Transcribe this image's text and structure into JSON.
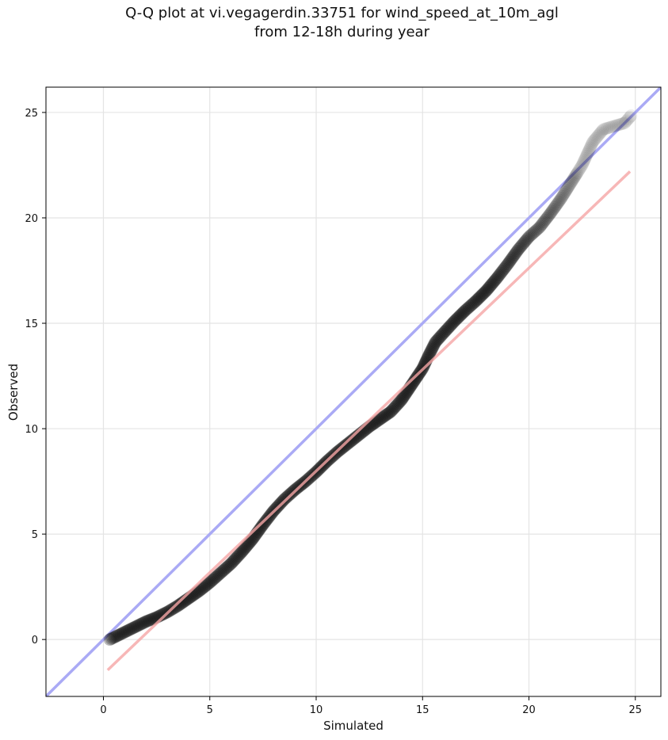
{
  "chart_data": {
    "type": "scatter",
    "title_line1": "Q-Q plot at vi.vegagerdin.33751 for wind_speed_at_10m_agl",
    "title_line2": "from 12-18h during year",
    "xlabel": "Simulated",
    "ylabel": "Observed",
    "xlim": [
      -2.7,
      26.2
    ],
    "ylim": [
      -2.7,
      26.2
    ],
    "xticks": [
      0,
      5,
      10,
      15,
      20,
      25
    ],
    "yticks": [
      0,
      5,
      10,
      15,
      20,
      25
    ],
    "grid": true,
    "reference_line": {
      "name": "1:1",
      "color": "#aaaaf5",
      "from": [
        -2.7,
        -2.7
      ],
      "to": [
        26.2,
        26.2
      ]
    },
    "fit_line": {
      "name": "fit",
      "color": "#f5a5a5",
      "from": [
        0.2,
        -1.45
      ],
      "to": [
        24.75,
        22.2
      ]
    },
    "quantile_curve": {
      "color": "#111111",
      "points": [
        [
          0.3,
          0.0
        ],
        [
          0.5,
          0.1
        ],
        [
          1.0,
          0.35
        ],
        [
          1.5,
          0.6
        ],
        [
          2.0,
          0.85
        ],
        [
          2.5,
          1.05
        ],
        [
          3.0,
          1.3
        ],
        [
          3.5,
          1.6
        ],
        [
          4.0,
          1.95
        ],
        [
          4.5,
          2.3
        ],
        [
          5.0,
          2.7
        ],
        [
          5.5,
          3.15
        ],
        [
          6.0,
          3.6
        ],
        [
          6.5,
          4.15
        ],
        [
          7.0,
          4.75
        ],
        [
          7.5,
          5.45
        ],
        [
          8.0,
          6.1
        ],
        [
          8.5,
          6.65
        ],
        [
          9.0,
          7.1
        ],
        [
          9.5,
          7.5
        ],
        [
          10.0,
          7.95
        ],
        [
          10.5,
          8.45
        ],
        [
          11.0,
          8.9
        ],
        [
          11.5,
          9.3
        ],
        [
          12.0,
          9.7
        ],
        [
          12.5,
          10.1
        ],
        [
          13.0,
          10.45
        ],
        [
          13.5,
          10.8
        ],
        [
          14.0,
          11.35
        ],
        [
          14.5,
          12.1
        ],
        [
          15.0,
          12.85
        ],
        [
          15.3,
          13.5
        ],
        [
          15.6,
          14.1
        ],
        [
          16.0,
          14.55
        ],
        [
          16.5,
          15.1
        ],
        [
          17.0,
          15.6
        ],
        [
          17.5,
          16.05
        ],
        [
          18.0,
          16.55
        ],
        [
          18.5,
          17.15
        ],
        [
          19.0,
          17.8
        ],
        [
          19.5,
          18.5
        ],
        [
          20.0,
          19.1
        ],
        [
          20.5,
          19.55
        ],
        [
          21.0,
          20.2
        ],
        [
          21.5,
          20.9
        ],
        [
          22.0,
          21.7
        ],
        [
          22.5,
          22.5
        ],
        [
          23.0,
          23.6
        ],
        [
          23.5,
          24.2
        ],
        [
          24.5,
          24.5
        ],
        [
          24.8,
          24.85
        ]
      ]
    }
  }
}
